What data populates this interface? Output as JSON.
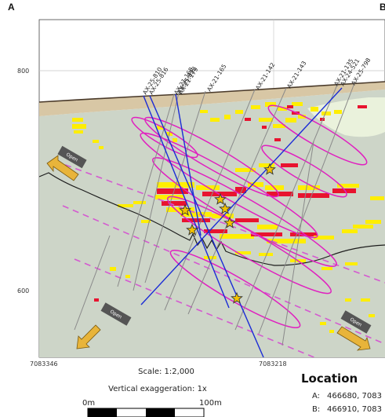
{
  "panel_labels": {
    "left": "A",
    "right": "B"
  },
  "elevation_ticks": [
    "800",
    "600"
  ],
  "easting_ticks": [
    "7083346",
    "7083218"
  ],
  "drillholes": [
    {
      "name": "AX-25-810",
      "type": "2025"
    },
    {
      "name": "AX-25-816",
      "type": "2025"
    },
    {
      "name": "AX-21-168",
      "type": "historic"
    },
    {
      "name": "AX-21-179",
      "type": "historic"
    },
    {
      "name": "AX-25-822",
      "type": "2025"
    },
    {
      "name": "AX-21-165",
      "type": "historic"
    },
    {
      "name": "AX-21-142",
      "type": "historic"
    },
    {
      "name": "AX-21-143",
      "type": "historic"
    },
    {
      "name": "AX-21-135",
      "type": "historic"
    },
    {
      "name": "AX-24-521",
      "type": "historic"
    },
    {
      "name": "AX-25-798",
      "type": "2025"
    }
  ],
  "open_labels": [
    "Open",
    "Open",
    "Open"
  ],
  "scale": {
    "ratio": "Scale: 1:2,000",
    "vertical_exaggeration": "Vertical exaggeration: 1x",
    "start": "0m",
    "end": "100m"
  },
  "location": {
    "title": "Location",
    "rows": [
      {
        "key": "A:",
        "value": "466680, 7083"
      },
      {
        "key": "B:",
        "value": "466910, 7083"
      }
    ]
  },
  "colors": {
    "host_rock": "#cdd5c8",
    "overburden": "#d8c7a5",
    "pale_zone": "#eaf2dc",
    "high_grade": "#e8132f",
    "medium_grade": "#ffee00",
    "low_grade": "#f6f3a0",
    "shell_outline": "#e020c0",
    "dashed_structure": "#d45ad0",
    "drillhole_2025": "#1a2bd6",
    "drillhole_historic": "#8a8a8a",
    "star_fill": "#f2c200",
    "arrow_fill": "#e8b43a",
    "open_box": "#555555"
  }
}
